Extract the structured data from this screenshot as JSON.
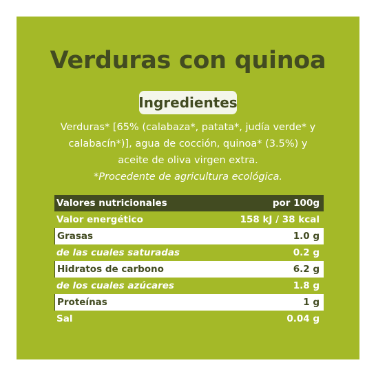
{
  "title": "Verduras con quinoa",
  "ingredients_heading": "Ingredientes",
  "ingredients_lines": [
    "Verduras* [65% (calabaza*, patata*, judía verde* y",
    "calabacín*)], agua de cocción, quinoa* (3.5%) y",
    "aceite de oliva virgen extra."
  ],
  "organic_note": "*Procedente de agricultura ecológica.",
  "nutrition": {
    "header": {
      "label": "Valores nutricionales",
      "value": "por 100g"
    },
    "rows": [
      {
        "label": "Valor energético",
        "value": "158 kJ / 38 kcal"
      },
      {
        "label": "Grasas",
        "value": "1.0 g"
      },
      {
        "label": "de las cuales saturadas",
        "value": "0.2 g"
      },
      {
        "label": "Hidratos de carbono",
        "value": "6.2 g"
      },
      {
        "label": "de los cuales azúcares",
        "value": "1.8 g"
      },
      {
        "label": "Proteínas",
        "value": "1 g"
      },
      {
        "label": "Sal",
        "value": "0.04 g"
      }
    ]
  },
  "colors": {
    "panel_background": "#a4b928",
    "dark_olive": "#424b21",
    "badge_background": "#f4f6ea",
    "text_light": "#ffffff"
  }
}
